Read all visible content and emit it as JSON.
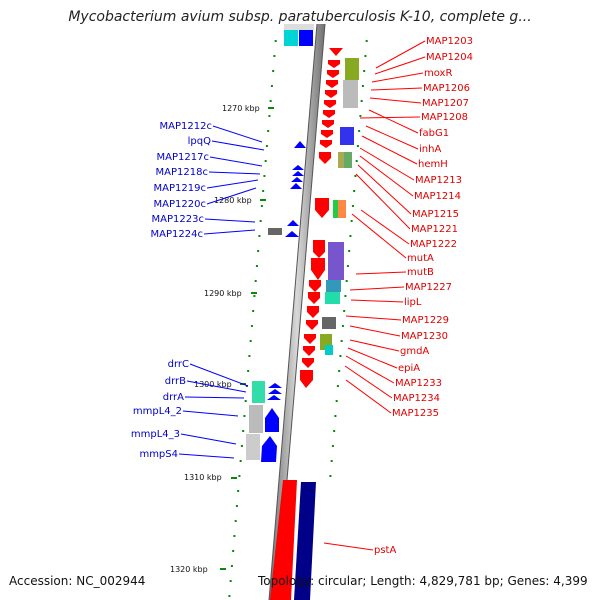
{
  "title": "Mycobacterium avium subsp. paratuberculosis K-10, complete g...",
  "footer": {
    "accession": "Accession: NC_002944",
    "topology": "Topology: circular; Length: 4,829,781 bp; Genes: 4,399"
  },
  "colors": {
    "forward": "#ff0000",
    "reverse": "#0000ff",
    "label_forward": "#e00000",
    "label_reverse": "#0000cc",
    "backbone": "#909090"
  },
  "scale_ticks": [
    "1270 kbp",
    "1280 kbp",
    "1290 kbp",
    "1300 kbp",
    "1310 kbp",
    "1320 kbp"
  ],
  "forward_genes": [
    "MAP1203",
    "MAP1204",
    "moxR",
    "MAP1206",
    "MAP1207",
    "MAP1208",
    "fabG1",
    "inhA",
    "hemH",
    "MAP1213",
    "MAP1214",
    "MAP1215",
    "MAP1221",
    "MAP1222",
    "mutA",
    "mutB",
    "MAP1227",
    "lipL",
    "MAP1229",
    "MAP1230",
    "gmdA",
    "epiA",
    "MAP1233",
    "MAP1234",
    "MAP1235",
    "pstA"
  ],
  "reverse_genes": [
    "MAP1212c",
    "lpqQ",
    "MAP1217c",
    "MAP1218c",
    "MAP1219c",
    "MAP1220c",
    "MAP1223c",
    "MAP1224c",
    "drrC",
    "drrB",
    "drrA",
    "mmpL4_2",
    "mmpL4_3",
    "mmpS4"
  ]
}
